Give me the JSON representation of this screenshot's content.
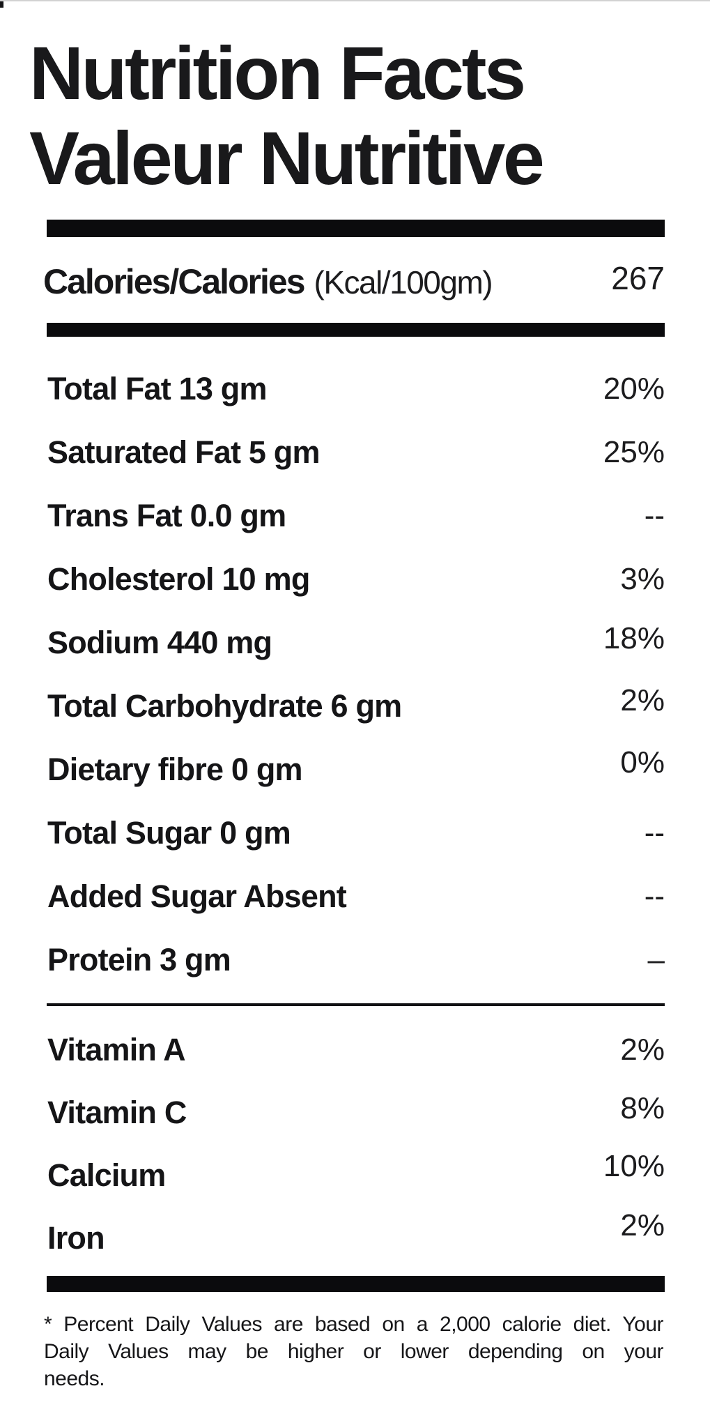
{
  "label": {
    "title_line1": "Nutrition Facts",
    "title_line2": "Valeur Nutritive",
    "calories": {
      "name": "Calories/Calories",
      "unit": "(Kcal/100gm)",
      "value": "267"
    },
    "nutrients": [
      {
        "name": "Total Fat 13 gm",
        "dv": "20%"
      },
      {
        "name": "Saturated Fat 5 gm",
        "dv": "25%"
      },
      {
        "name": "Trans Fat 0.0 gm",
        "dv": "--"
      },
      {
        "name": "Cholesterol 10 mg",
        "dv": "3%"
      },
      {
        "name": "Sodium 440 mg",
        "dv": "18%"
      },
      {
        "name": "Total Carbohydrate 6 gm",
        "dv": "2%"
      },
      {
        "name": "Dietary fibre 0 gm",
        "dv": "0%"
      },
      {
        "name": "Total Sugar 0 gm",
        "dv": "--"
      },
      {
        "name": "Added Sugar Absent",
        "dv": "--"
      },
      {
        "name": "Protein 3 gm",
        "dv": "–"
      }
    ],
    "vitamins": [
      {
        "name": "Vitamin A",
        "dv": "2%"
      },
      {
        "name": "Vitamin C",
        "dv": "8%"
      },
      {
        "name": "Calcium",
        "dv": "10%"
      },
      {
        "name": "Iron",
        "dv": "2%"
      }
    ],
    "footnote": {
      "lines": [
        "* Percent Daily Values are based on a 2,000 calorie diet. Your",
        "Daily Values may be higher or lower depending on your",
        "needs."
      ]
    },
    "colors": {
      "text": "#141416",
      "bar": "#0b0b0d",
      "background": "#ffffff"
    }
  }
}
